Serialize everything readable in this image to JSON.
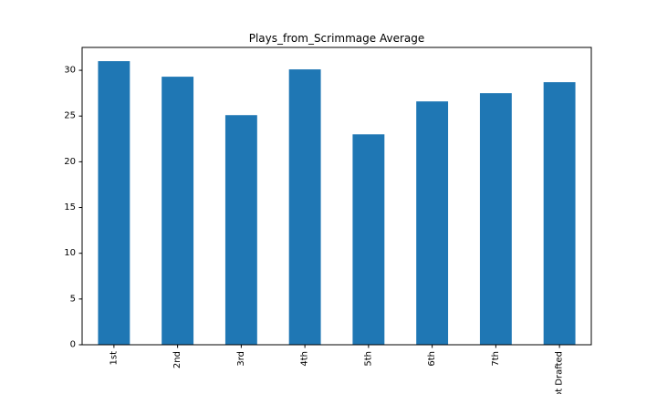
{
  "chart_data": {
    "type": "bar",
    "title": "Plays_from_Scrimmage Average",
    "xlabel": "",
    "ylabel": "",
    "categories": [
      "1st",
      "2nd",
      "3rd",
      "4th",
      "5th",
      "6th",
      "7th",
      "Not Drafted"
    ],
    "values": [
      31.0,
      29.3,
      25.1,
      30.1,
      23.0,
      26.6,
      27.5,
      28.7
    ],
    "ylim": [
      0,
      32.5
    ],
    "yticks": [
      0,
      5,
      10,
      15,
      20,
      25,
      30
    ],
    "grid": false,
    "legend": "none",
    "bar_color": "#1f77b4"
  }
}
